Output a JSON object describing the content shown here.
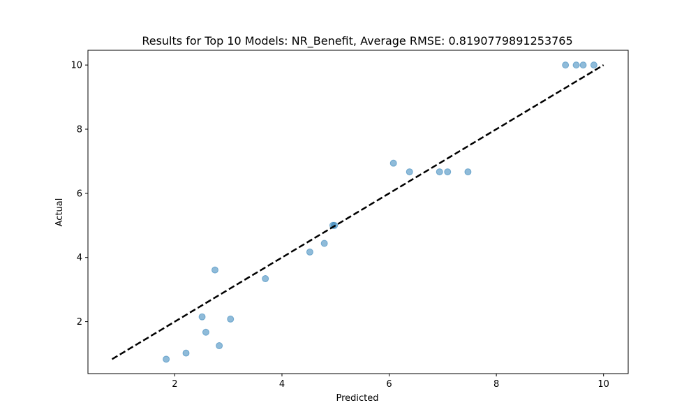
{
  "chart_data": {
    "type": "scatter",
    "title": "Results for Top 10 Models: NR_Benefit, Average RMSE: 0.8190779891253765",
    "xlabel": "Predicted",
    "ylabel": "Actual",
    "xlim": [
      0.38,
      10.46
    ],
    "ylim": [
      0.38,
      10.46
    ],
    "xticks": [
      2,
      4,
      6,
      8,
      10
    ],
    "yticks": [
      2,
      4,
      6,
      8,
      10
    ],
    "grid": false,
    "point_color": "#1f77b4",
    "reference_line": {
      "style": "dashed",
      "color": "#000000",
      "from": [
        0.83,
        0.83
      ],
      "to": [
        10.0,
        10.0
      ]
    },
    "points": [
      {
        "x": 1.84,
        "y": 0.83
      },
      {
        "x": 2.21,
        "y": 1.02
      },
      {
        "x": 2.51,
        "y": 2.15
      },
      {
        "x": 2.58,
        "y": 1.67
      },
      {
        "x": 2.75,
        "y": 3.61
      },
      {
        "x": 2.83,
        "y": 1.25
      },
      {
        "x": 3.04,
        "y": 2.08
      },
      {
        "x": 3.69,
        "y": 3.34
      },
      {
        "x": 4.52,
        "y": 4.17
      },
      {
        "x": 4.79,
        "y": 4.44
      },
      {
        "x": 4.95,
        "y": 5.0
      },
      {
        "x": 4.98,
        "y": 5.0
      },
      {
        "x": 6.08,
        "y": 6.94
      },
      {
        "x": 6.38,
        "y": 6.67
      },
      {
        "x": 6.94,
        "y": 6.67
      },
      {
        "x": 7.09,
        "y": 6.67
      },
      {
        "x": 7.47,
        "y": 6.67
      },
      {
        "x": 9.29,
        "y": 10.0
      },
      {
        "x": 9.49,
        "y": 10.0
      },
      {
        "x": 9.62,
        "y": 10.0
      },
      {
        "x": 9.82,
        "y": 10.0
      }
    ]
  }
}
